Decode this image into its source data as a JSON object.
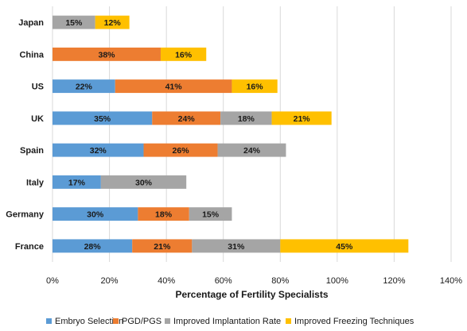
{
  "chart_data": {
    "type": "bar",
    "orientation": "horizontal",
    "stacked": true,
    "categories": [
      "Japan",
      "China",
      "US",
      "UK",
      "Spain",
      "Italy",
      "Germany",
      "France"
    ],
    "series": [
      {
        "name": "Embryo Selection",
        "color": "#5b9bd5",
        "values": [
          0,
          0,
          22,
          35,
          32,
          17,
          30,
          28
        ]
      },
      {
        "name": "PGD/PGS",
        "color": "#ed7d31",
        "values": [
          0,
          38,
          41,
          24,
          26,
          0,
          18,
          21
        ]
      },
      {
        "name": "Improved Implantation Rate",
        "color": "#a5a5a5",
        "values": [
          15,
          0,
          0,
          18,
          24,
          30,
          15,
          31
        ]
      },
      {
        "name": "Improved Freezing Techniques",
        "color": "#ffc000",
        "values": [
          12,
          16,
          16,
          21,
          0,
          0,
          0,
          45
        ]
      }
    ],
    "value_suffix": "%",
    "xlabel": "Percentage of Fertility Specialists",
    "ylabel": "",
    "title": "",
    "xlim": [
      0,
      140
    ],
    "x_ticks": [
      "0%",
      "20%",
      "40%",
      "60%",
      "80%",
      "100%",
      "120%",
      "140%"
    ],
    "grid": "vertical",
    "legend_position": "bottom"
  }
}
